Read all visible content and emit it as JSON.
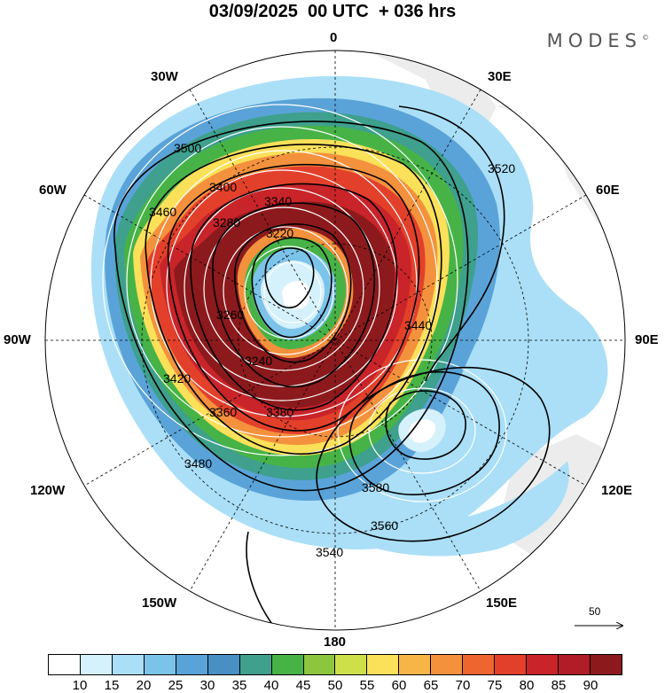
{
  "title": "03/09/2025  00 UTC  + 036 hrs",
  "brand": "MODES",
  "brand_mark": "©",
  "meridian_labels": {
    "top": "0",
    "upper_left": "30W",
    "upper_right": "30E",
    "left_upper": "60W",
    "right_upper": "60E",
    "left": "90W",
    "right": "90E",
    "left_lower": "120W",
    "right_lower": "120E",
    "bottom_left": "150W",
    "bottom_right": "150E",
    "bottom": "180"
  },
  "colorbar": {
    "colors": [
      "#ffffff",
      "#d5f1fc",
      "#aadff7",
      "#7cc3ea",
      "#5aa3d8",
      "#4a8fc4",
      "#3ea08d",
      "#47b347",
      "#8cc63f",
      "#cde04a",
      "#fbe05a",
      "#f7b548",
      "#f4913d",
      "#ef6530",
      "#e3402b",
      "#c8242a",
      "#b01d27",
      "#8c1a1d"
    ],
    "ticks": [
      "10",
      "15",
      "20",
      "25",
      "30",
      "35",
      "40",
      "45",
      "50",
      "55",
      "60",
      "65",
      "70",
      "75",
      "80",
      "85",
      "90"
    ]
  },
  "contour_labels": [
    "3220",
    "3240",
    "3260",
    "3280",
    "3340",
    "3360",
    "3380",
    "3400",
    "3420",
    "3440",
    "3460",
    "3480",
    "3500",
    "3520",
    "3540",
    "3560",
    "3580"
  ],
  "reference_vector": {
    "label": "50"
  },
  "map": {
    "projection": "south polar stereographic",
    "field": "wind speed (shaded), geopotential height (contours), streamlines"
  }
}
